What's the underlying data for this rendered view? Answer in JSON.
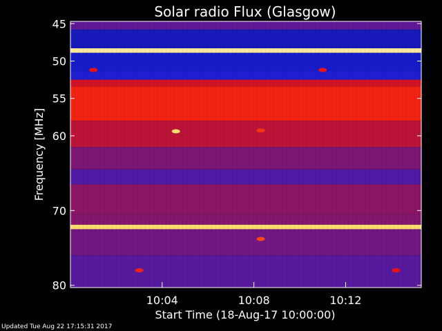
{
  "chart_data": {
    "type": "heatmap",
    "title": "Solar radio Flux (Glasgow)",
    "ylabel": "Frequency [MHz]",
    "xlabel": "Start Time (18-Aug-17 10:00:00)",
    "y_ticks": [
      45,
      50,
      55,
      60,
      70,
      80
    ],
    "y_range_mhz": [
      44.7,
      80.3
    ],
    "y_axis_direction": "increasing-downward",
    "x_ticks": [
      "10:04",
      "10:08",
      "10:12"
    ],
    "x_range_minutes": [
      0,
      15.3
    ],
    "colormap": "blue-purple-red-yellow-white",
    "colors": {
      "background": "#000000",
      "low": "#1d1aa8",
      "mid": "#7a1a86",
      "high": "#e01010",
      "peak": "#ffe080"
    },
    "bands": [
      {
        "from_mhz": 44.7,
        "to_mhz": 45.8,
        "level": 0.3
      },
      {
        "from_mhz": 45.8,
        "to_mhz": 48.3,
        "level": 0.06
      },
      {
        "from_mhz": 48.3,
        "to_mhz": 48.9,
        "level": 0.97
      },
      {
        "from_mhz": 48.9,
        "to_mhz": 51.3,
        "level": 0.08
      },
      {
        "from_mhz": 51.3,
        "to_mhz": 52.5,
        "level": 0.12
      },
      {
        "from_mhz": 52.5,
        "to_mhz": 53.4,
        "level": 0.62
      },
      {
        "from_mhz": 53.4,
        "to_mhz": 58.0,
        "level": 0.75
      },
      {
        "from_mhz": 58.0,
        "to_mhz": 61.5,
        "level": 0.55
      },
      {
        "from_mhz": 61.5,
        "to_mhz": 64.5,
        "level": 0.38
      },
      {
        "from_mhz": 64.5,
        "to_mhz": 66.5,
        "level": 0.25
      },
      {
        "from_mhz": 66.5,
        "to_mhz": 70.5,
        "level": 0.42
      },
      {
        "from_mhz": 70.5,
        "to_mhz": 71.9,
        "level": 0.4
      },
      {
        "from_mhz": 71.9,
        "to_mhz": 72.5,
        "level": 0.95
      },
      {
        "from_mhz": 72.5,
        "to_mhz": 76.0,
        "level": 0.35
      },
      {
        "from_mhz": 76.0,
        "to_mhz": 80.3,
        "level": 0.28
      }
    ],
    "hotspots": [
      {
        "time_min": 4.6,
        "freq_mhz": 59.4,
        "level": 0.95
      },
      {
        "time_min": 8.3,
        "freq_mhz": 59.3,
        "level": 0.8
      },
      {
        "time_min": 8.3,
        "freq_mhz": 73.8,
        "level": 0.85
      },
      {
        "time_min": 3.0,
        "freq_mhz": 78.0,
        "level": 0.75
      },
      {
        "time_min": 14.2,
        "freq_mhz": 78.0,
        "level": 0.7
      },
      {
        "time_min": 1.0,
        "freq_mhz": 51.2,
        "level": 0.7
      },
      {
        "time_min": 11.0,
        "freq_mhz": 51.2,
        "level": 0.7
      }
    ]
  },
  "footer": {
    "updated": "Updated Tue Aug 22 17:15:31 2017"
  }
}
